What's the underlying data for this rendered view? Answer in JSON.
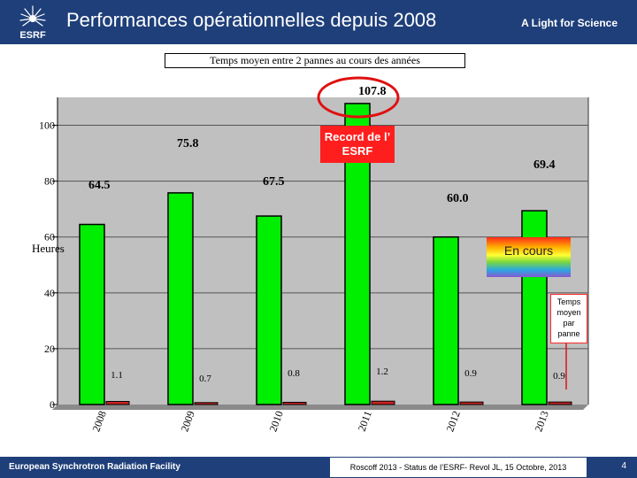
{
  "header": {
    "logo_text": "ESRF",
    "title": "Performances opérationnelles depuis 2008",
    "tagline": "A Light for Science"
  },
  "chart_data": {
    "type": "bar",
    "title": "Temps moyen entre 2 pannes au cours des années",
    "ylabel": "Heures",
    "ylim": [
      0,
      110
    ],
    "yticks": [
      0,
      20,
      40,
      60,
      80,
      100
    ],
    "categories": [
      "2008",
      "2009",
      "2010",
      "2011",
      "2012",
      "2013"
    ],
    "series": [
      {
        "name": "Temps moyen entre 2 pannes",
        "color": "#00ee00",
        "values": [
          64.5,
          75.8,
          67.5,
          107.8,
          60.0,
          69.4
        ]
      },
      {
        "name": "Temps moyen par panne",
        "color": "#cc2222",
        "values": [
          1.1,
          0.7,
          0.8,
          1.2,
          0.9,
          0.9
        ]
      }
    ],
    "bar_labels": [
      "64.5",
      "75.8",
      "67.5",
      "107.8",
      "60.0",
      "69.4"
    ],
    "small_labels": [
      "1.1",
      "0.7",
      "0.8",
      "1.2",
      "0.9",
      "0.9"
    ],
    "annotations": {
      "record": "Record de l’ ESRF",
      "in_progress": "En cours",
      "note": "Temps moyen par panne"
    }
  },
  "footer": {
    "org": "European Synchrotron Radiation Facility",
    "caption": "Roscoff 2013 - Status de l’ESRF- Revol JL, 15 Octobre, 2013",
    "page": "4"
  }
}
